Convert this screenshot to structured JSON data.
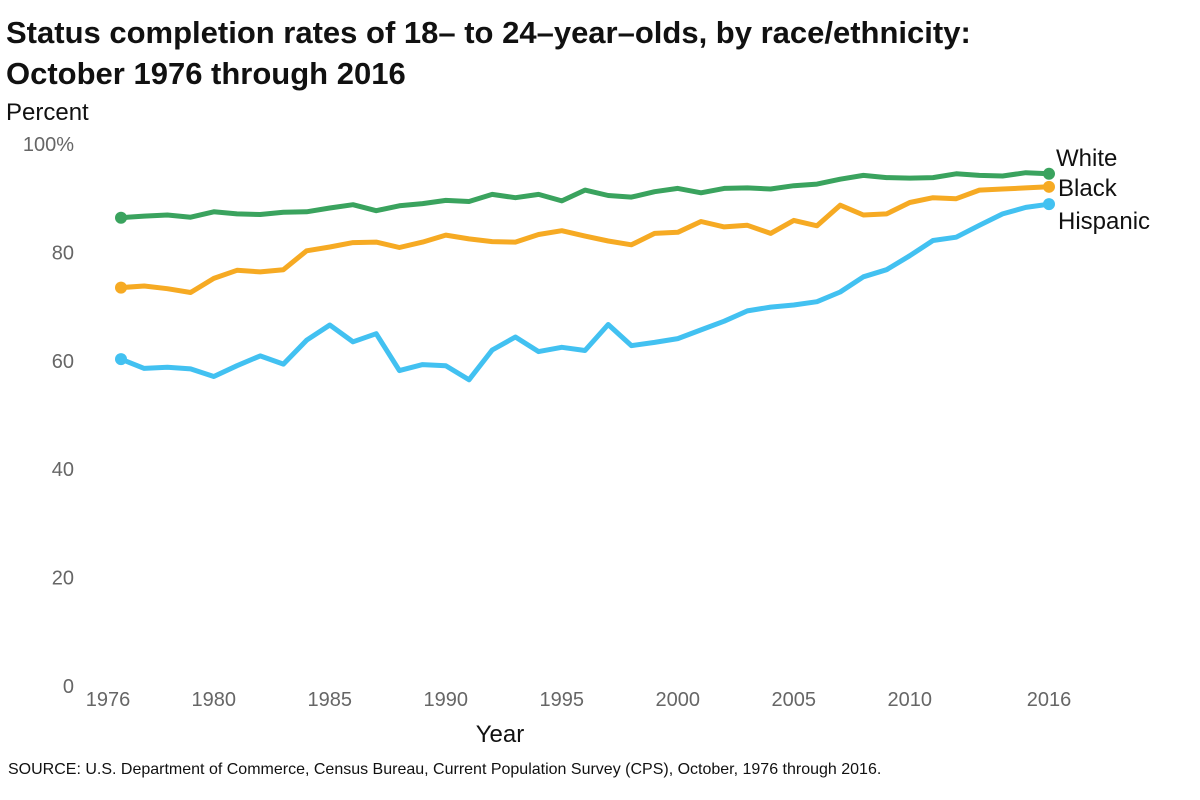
{
  "title_line1": "Status completion rates of 18– to 24–year–olds, by race/ethnicity:",
  "title_line2": "October 1976 through 2016",
  "source": "SOURCE: U.S. Department of Commerce, Census Bureau, Current Population Survey (CPS), October, 1976 through 2016.",
  "chart_data": {
    "type": "line",
    "title": "Status completion rates of 18– to 24–year–olds, by race/ethnicity: October 1976 through 2016",
    "ylabel": "Percent",
    "xlabel": "Year",
    "ylim": [
      0,
      100
    ],
    "xlim": [
      1976,
      2016
    ],
    "y_ticks": [
      {
        "value": 0,
        "label": "0"
      },
      {
        "value": 20,
        "label": "20"
      },
      {
        "value": 40,
        "label": "40"
      },
      {
        "value": 60,
        "label": "60"
      },
      {
        "value": 80,
        "label": "80"
      },
      {
        "value": 100,
        "label": "100%"
      }
    ],
    "x_ticks": [
      {
        "value": 1976,
        "label": "1976"
      },
      {
        "value": 1980,
        "label": "1980"
      },
      {
        "value": 1985,
        "label": "1985"
      },
      {
        "value": 1990,
        "label": "1990"
      },
      {
        "value": 1995,
        "label": "1995"
      },
      {
        "value": 2000,
        "label": "2000"
      },
      {
        "value": 2005,
        "label": "2005"
      },
      {
        "value": 2010,
        "label": "2010"
      },
      {
        "value": 2016,
        "label": "2016"
      }
    ],
    "grid": false,
    "x": [
      1976,
      1977,
      1978,
      1979,
      1980,
      1981,
      1982,
      1983,
      1984,
      1985,
      1986,
      1987,
      1988,
      1989,
      1990,
      1991,
      1992,
      1993,
      1994,
      1995,
      1996,
      1997,
      1998,
      1999,
      2000,
      2001,
      2002,
      2003,
      2004,
      2005,
      2006,
      2007,
      2008,
      2009,
      2010,
      2011,
      2012,
      2013,
      2014,
      2015,
      2016
    ],
    "series": [
      {
        "name": "White",
        "color": "#3aa35e",
        "values": [
          86.4,
          86.7,
          86.9,
          86.5,
          87.5,
          87.1,
          87.0,
          87.4,
          87.5,
          88.2,
          88.8,
          87.7,
          88.6,
          89.0,
          89.6,
          89.4,
          90.7,
          90.1,
          90.7,
          89.5,
          91.5,
          90.5,
          90.2,
          91.2,
          91.8,
          91.0,
          91.8,
          91.9,
          91.7,
          92.3,
          92.6,
          93.5,
          94.2,
          93.8,
          93.7,
          93.8,
          94.5,
          94.2,
          94.1,
          94.7,
          94.5
        ]
      },
      {
        "name": "Black",
        "color": "#f6aa23",
        "values": [
          73.5,
          73.8,
          73.3,
          72.6,
          75.2,
          76.7,
          76.4,
          76.8,
          80.3,
          81.0,
          81.8,
          81.9,
          80.9,
          81.9,
          83.2,
          82.5,
          82.0,
          81.9,
          83.3,
          84.0,
          83.0,
          82.1,
          81.4,
          83.5,
          83.7,
          85.7,
          84.7,
          85.0,
          83.5,
          85.9,
          84.9,
          88.7,
          86.9,
          87.1,
          89.2,
          90.1,
          89.9,
          91.5,
          91.7,
          91.9,
          92.1
        ]
      },
      {
        "name": "Hispanic",
        "color": "#42c1f1",
        "values": [
          60.3,
          58.6,
          58.8,
          58.5,
          57.1,
          59.1,
          60.9,
          59.4,
          63.8,
          66.6,
          63.5,
          65.0,
          58.2,
          59.3,
          59.1,
          56.5,
          62.0,
          64.4,
          61.7,
          62.5,
          61.9,
          66.7,
          62.8,
          63.4,
          64.1,
          65.7,
          67.3,
          69.2,
          69.9,
          70.3,
          70.9,
          72.7,
          75.5,
          76.8,
          79.4,
          82.2,
          82.8,
          85.0,
          87.1,
          88.3,
          88.9
        ]
      }
    ]
  }
}
